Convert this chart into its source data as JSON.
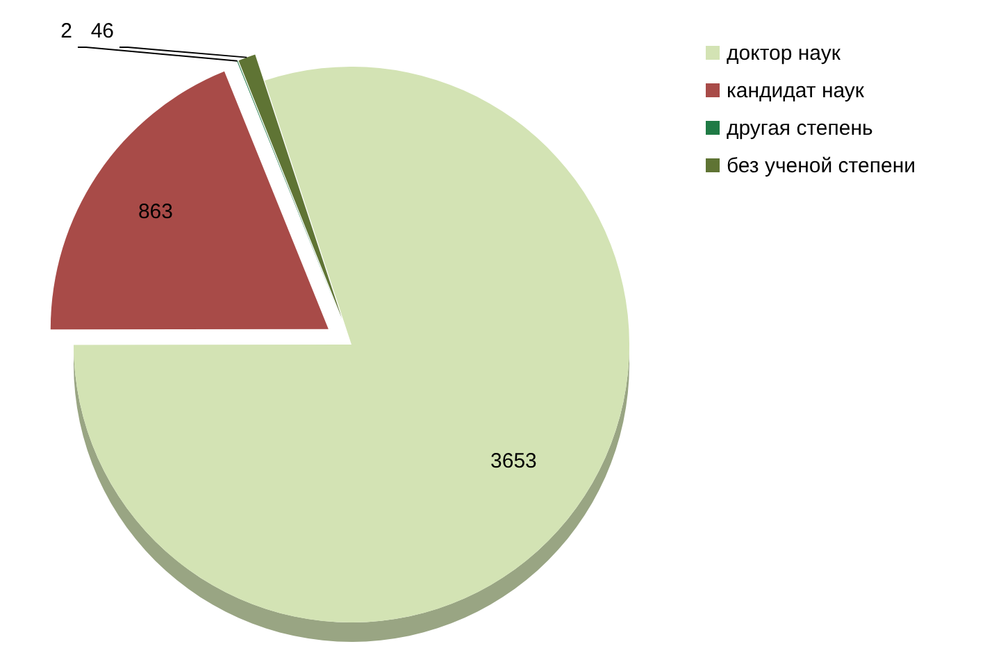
{
  "chart_data": {
    "type": "pie",
    "categories": [
      "доктор наук",
      "кандидат наук",
      "другая степень",
      "без ученой степени"
    ],
    "values": [
      3653,
      863,
      2,
      46
    ],
    "colors": [
      "#d3e3b4",
      "#a84b48",
      "#1f7a45",
      "#5f7434"
    ],
    "data_labels": true,
    "legend": "right"
  }
}
